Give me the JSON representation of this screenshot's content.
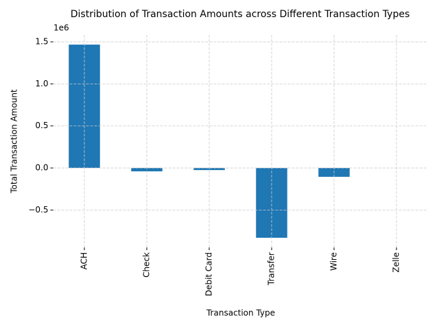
{
  "chart_data": {
    "type": "bar",
    "title": "Distribution of Transaction Amounts across Different Transaction Types",
    "xlabel": "Transaction Type",
    "ylabel": "Total Transaction Amount",
    "offset_text": "1e6",
    "categories": [
      "ACH",
      "Check",
      "Debit Card",
      "Transfer",
      "Wire",
      "Zelle"
    ],
    "values": [
      1467000,
      -40000,
      -25000,
      -830000,
      -105000,
      0
    ],
    "color": "#1f77b4",
    "ylim": [
      -945000,
      1582000
    ],
    "yticks": [
      {
        "value": -500000,
        "label": "−0.5"
      },
      {
        "value": 0,
        "label": "0.0"
      },
      {
        "value": 500000,
        "label": "0.5"
      },
      {
        "value": 1000000,
        "label": "1.0"
      },
      {
        "value": 1500000,
        "label": "1.5"
      }
    ],
    "grid": true
  }
}
